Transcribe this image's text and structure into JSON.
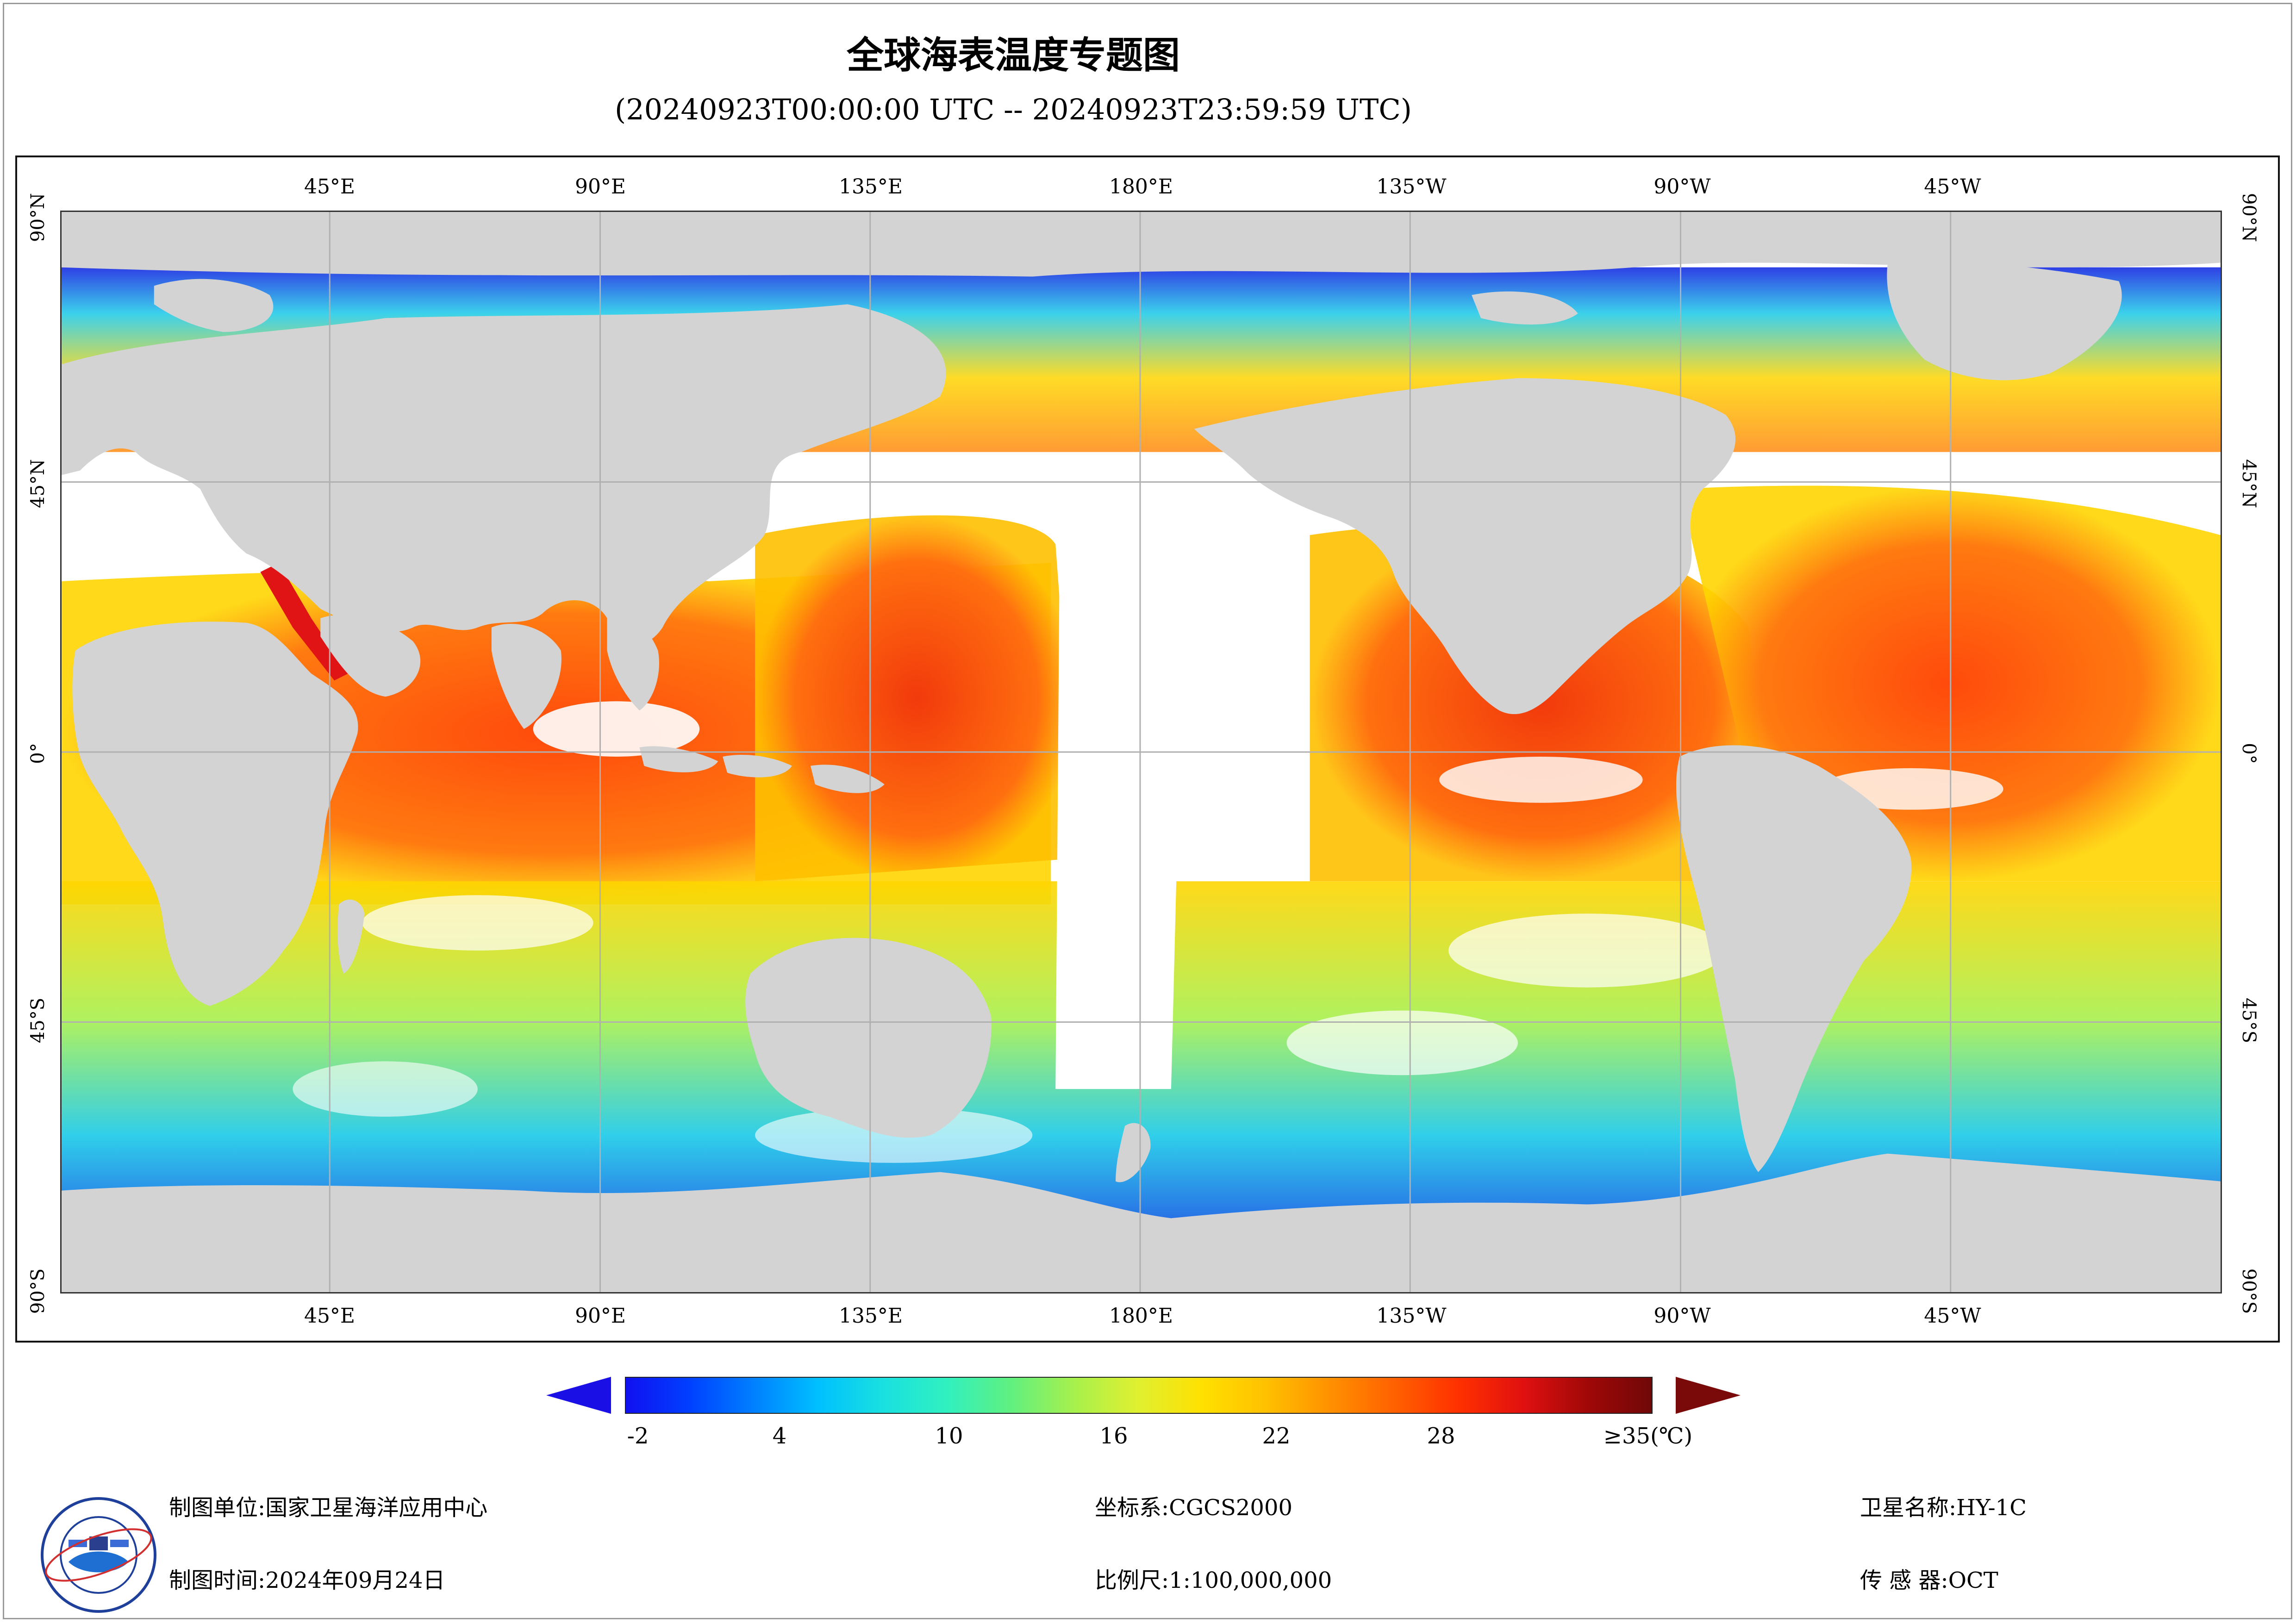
{
  "title": "全球海表温度专题图",
  "subtitle": "(20240923T00:00:00 UTC -- 20240923T23:59:59 UTC)",
  "axes": {
    "lon_labels_top": [
      "45°E",
      "90°E",
      "135°E",
      "180°E",
      "135°W",
      "90°W",
      "45°W"
    ],
    "lon_labels_bottom": [
      "45°E",
      "90°E",
      "135°E",
      "180°E",
      "135°W",
      "90°W",
      "45°W"
    ],
    "lat_labels_left": [
      "90°N",
      "45°N",
      "0°",
      "45°S",
      "90°S"
    ],
    "lat_labels_right": [
      "90°N",
      "45°N",
      "0°",
      "45°S",
      "90°S"
    ]
  },
  "colorbar": {
    "ticks": [
      "-2",
      "4",
      "10",
      "16",
      "22",
      "28",
      "≥35(℃)"
    ],
    "tick_values": [
      -2,
      4,
      10,
      16,
      22,
      28,
      35
    ],
    "min": -2,
    "max": 35,
    "under_color": "#1a10e6",
    "over_color": "#7a0a0a"
  },
  "colors": {
    "land": "#d3d3d4",
    "no_data": "#ffffff",
    "grid": "#b0b0b0",
    "cold": "#0a1ee0",
    "cool": "#19c9e8",
    "mild": "#a8f04c",
    "warm": "#ffd500",
    "hot": "#ff4a0c",
    "very_hot": "#e01414"
  },
  "footer": {
    "unit_label": "制图单位:",
    "unit_value": "国家卫星海洋应用中心",
    "time_label": "制图时间:",
    "time_value": "2024年09月24日",
    "crs_label": "坐标系:",
    "crs_value": "CGCS2000",
    "scale_label": "比例尺:",
    "scale_value": "1:100,000,000",
    "satellite_label": "卫星名称:",
    "satellite_value": "HY-1C",
    "sensor_label": "传 感 器:",
    "sensor_value": "OCT"
  },
  "logo": {
    "icon": "nsoas-logo-icon"
  }
}
